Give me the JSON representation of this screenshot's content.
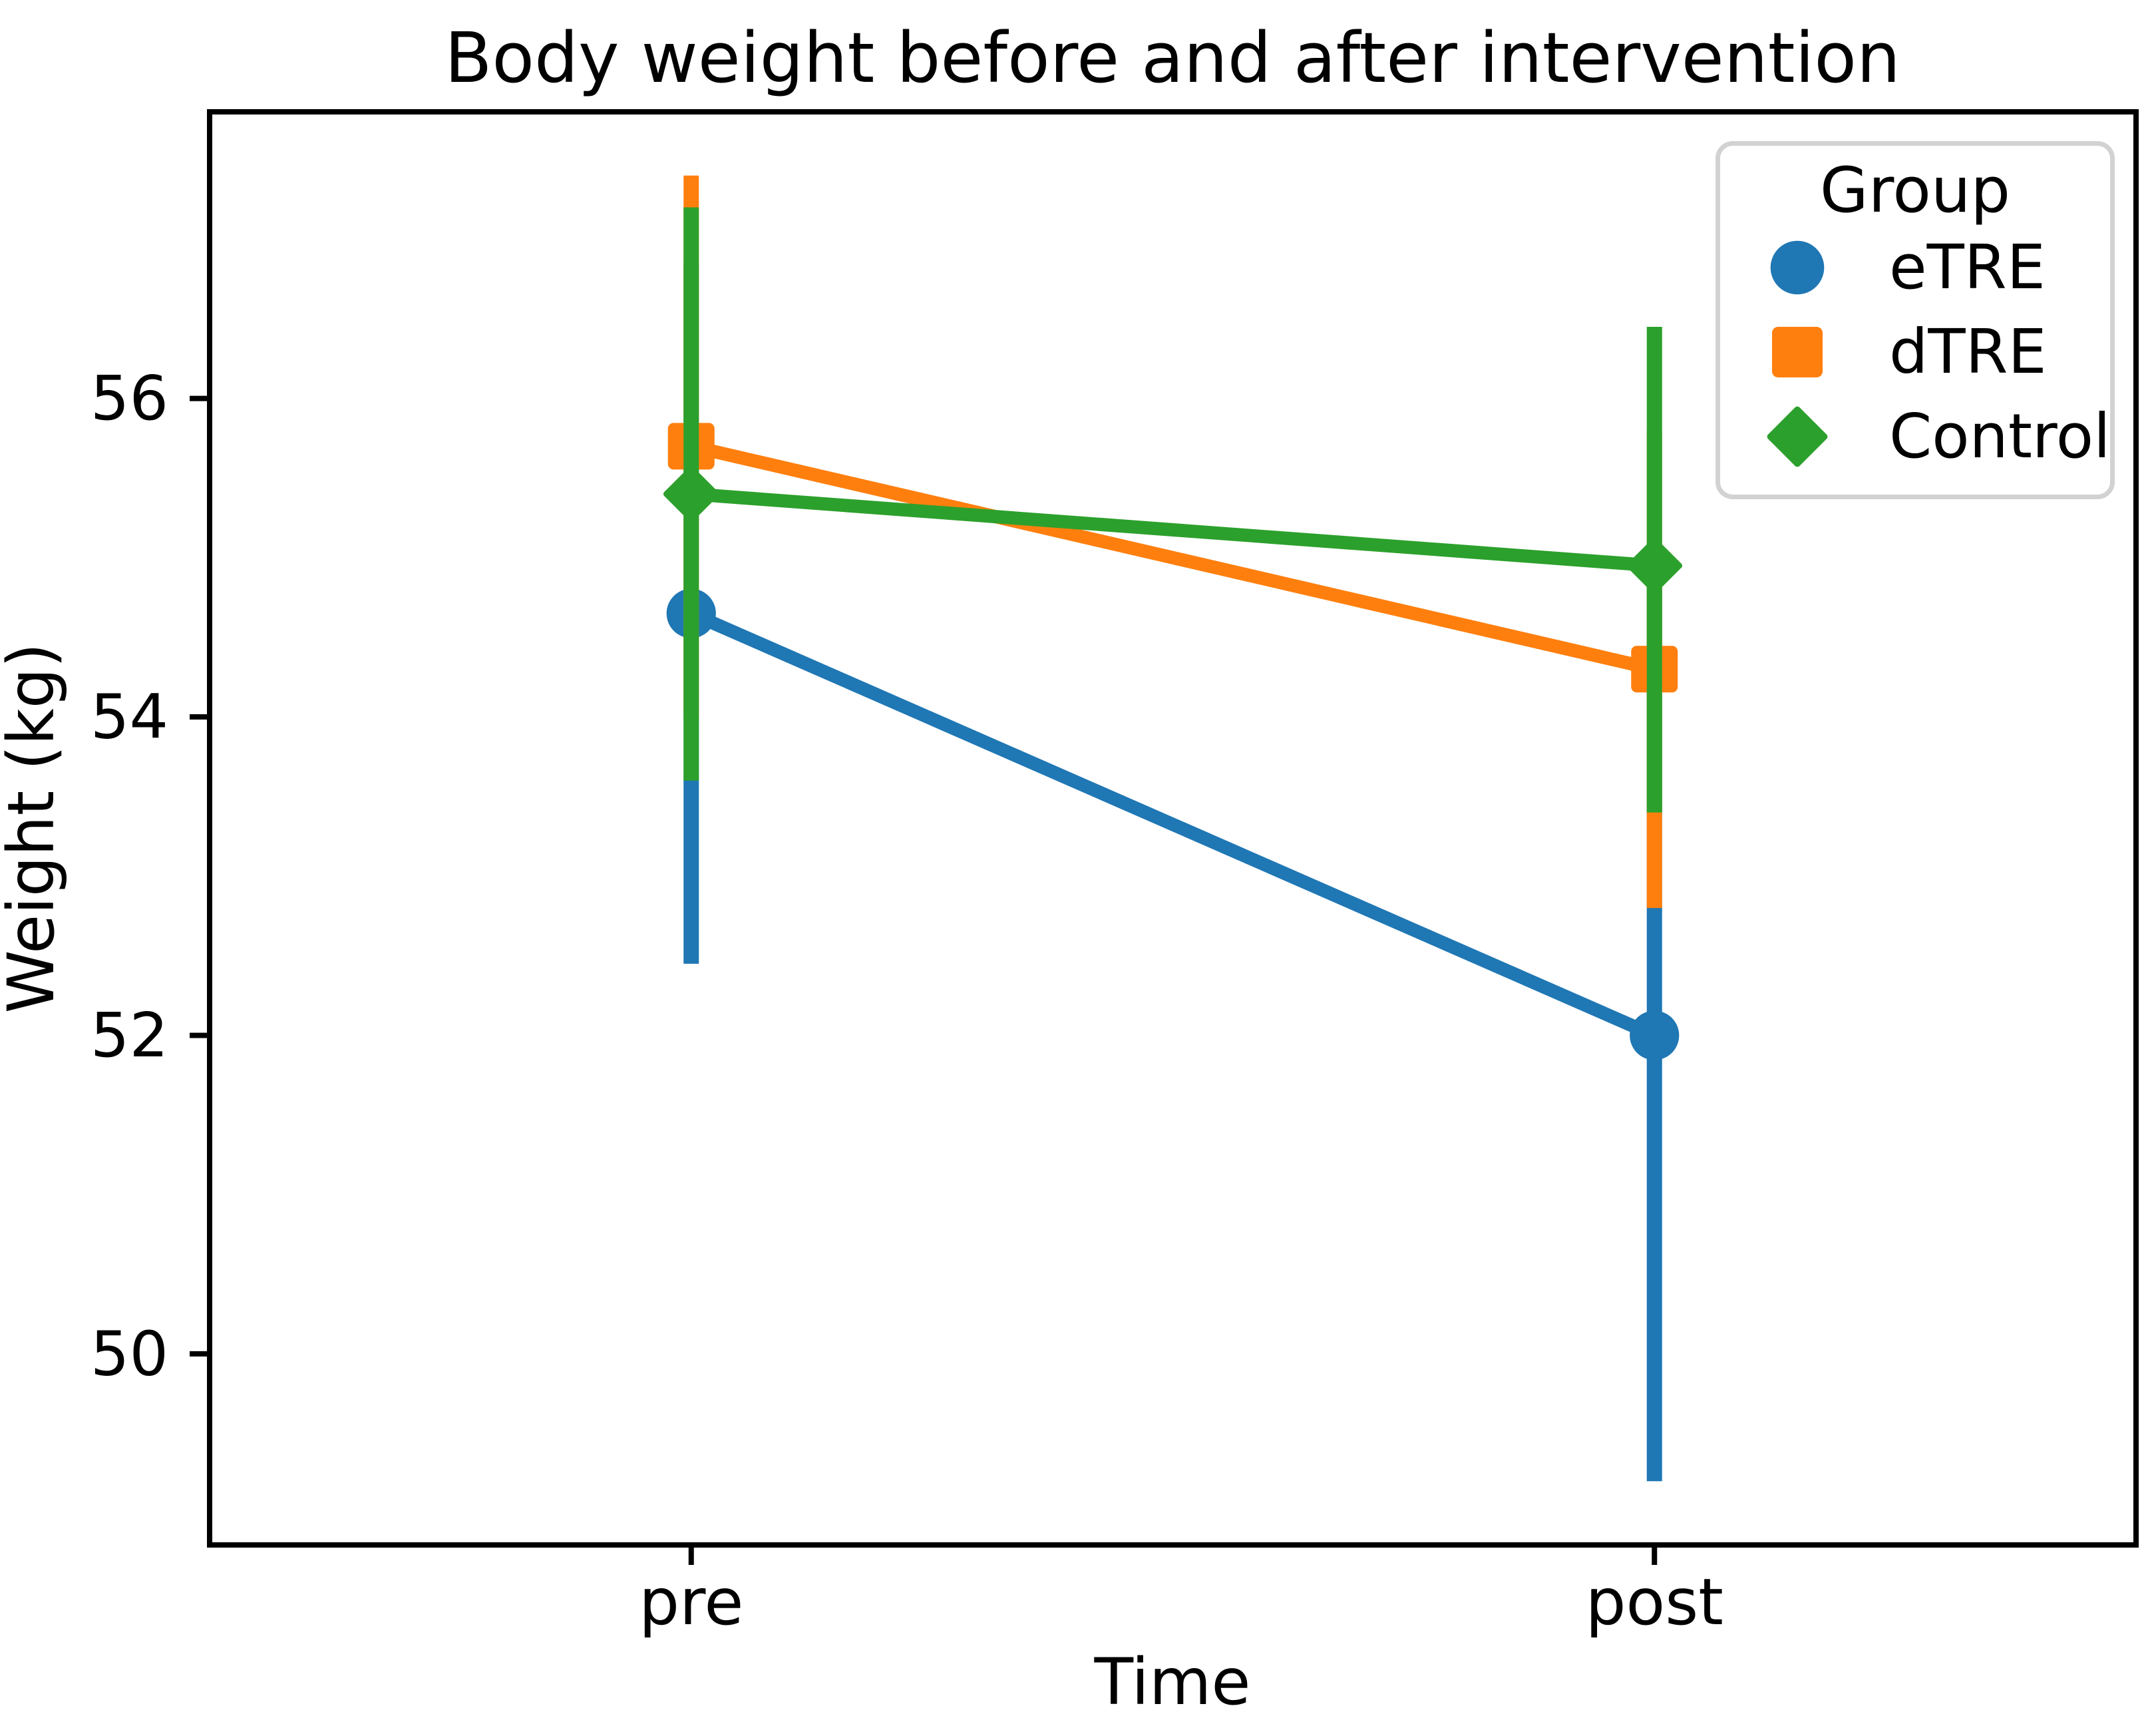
{
  "title": "Body weight before and after intervention",
  "xlabel": "Time",
  "ylabel": "Weight (kg)",
  "legend": {
    "title": "Group",
    "entries": [
      {
        "label": "eTRE",
        "marker": "circle",
        "color": "#1f77b4"
      },
      {
        "label": "dTRE",
        "marker": "square",
        "color": "#ff7f0e"
      },
      {
        "label": "Control",
        "marker": "diamond",
        "color": "#2ca02c"
      }
    ]
  },
  "chart_data": {
    "type": "line",
    "subtype": "pointplot-with-error-bars",
    "title": "Body weight before and after intervention",
    "xlabel": "Time",
    "ylabel": "Weight (kg)",
    "categories": [
      "pre",
      "post"
    ],
    "yticks": [
      50,
      52,
      54,
      56
    ],
    "ylim": [
      48.8,
      57.8
    ],
    "grid": false,
    "legend_position": "upper right",
    "series": [
      {
        "name": "eTRE",
        "marker": "circle",
        "color": "#1f77b4",
        "values": [
          54.65,
          52.0
        ],
        "ci_low": [
          52.45,
          49.2
        ],
        "ci_high": [
          56.85,
          54.85
        ]
      },
      {
        "name": "dTRE",
        "marker": "square",
        "color": "#ff7f0e",
        "values": [
          55.7,
          54.3
        ],
        "ci_low": [
          54.0,
          52.8
        ],
        "ci_high": [
          57.4,
          55.8
        ]
      },
      {
        "name": "Control",
        "marker": "diamond",
        "color": "#2ca02c",
        "values": [
          55.4,
          54.95
        ],
        "ci_low": [
          53.6,
          53.4
        ],
        "ci_high": [
          57.2,
          56.45
        ]
      }
    ],
    "colors": {
      "eTRE": "#1f77b4",
      "dTRE": "#ff7f0e",
      "Control": "#2ca02c",
      "axes": "#000000",
      "legend_border": "#d2d2d2"
    }
  }
}
